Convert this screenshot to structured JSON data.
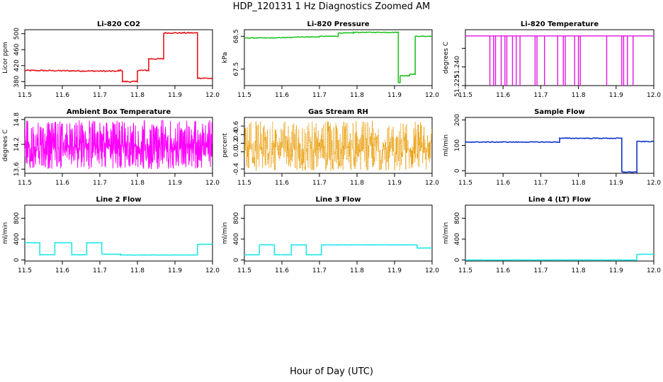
{
  "page": {
    "title": "HDP_120131  1 Hz Diagnostics Zoomed AM",
    "xlabel": "Hour of Day (UTC)"
  },
  "chart_data": [
    {
      "id": "co2",
      "type": "line",
      "title": "Li-820 CO2",
      "ylabel": "Licor ppm",
      "color": "#e8161b",
      "xlim": [
        11.5,
        12.0
      ],
      "ylim": [
        370,
        510
      ],
      "xticks": [
        11.5,
        11.6,
        11.7,
        11.8,
        11.9,
        12.0
      ],
      "yticks": [
        380,
        420,
        460,
        500
      ],
      "series": [
        {
          "x": [
            11.5,
            11.75,
            11.75,
            11.76,
            11.76,
            11.8,
            11.8,
            11.83,
            11.83,
            11.87,
            11.87,
            11.96,
            11.96,
            12.0
          ],
          "y": [
            408,
            406,
            408,
            408,
            380,
            380,
            408,
            408,
            437,
            437,
            502,
            502,
            389,
            388
          ],
          "noise": 1.5
        }
      ]
    },
    {
      "id": "pressure",
      "type": "line",
      "title": "Li-820 Pressure",
      "ylabel": "kPa",
      "color": "#22c322",
      "xlim": [
        11.5,
        12.0
      ],
      "ylim": [
        67.0,
        68.7
      ],
      "xticks": [
        11.5,
        11.6,
        11.7,
        11.8,
        11.9,
        12.0
      ],
      "yticks": [
        67.5,
        68.5
      ],
      "series": [
        {
          "x": [
            11.5,
            11.59,
            11.59,
            11.63,
            11.63,
            11.7,
            11.7,
            11.75,
            11.75,
            11.79,
            11.79,
            11.91,
            11.91,
            11.915,
            11.915,
            11.94,
            11.94,
            11.955,
            11.955,
            12.0
          ],
          "y": [
            68.45,
            68.45,
            68.46,
            68.46,
            68.48,
            68.48,
            68.5,
            68.5,
            68.6,
            68.6,
            68.62,
            68.62,
            67.1,
            67.1,
            67.3,
            67.3,
            67.35,
            67.35,
            68.5,
            68.5
          ],
          "noise": 0.01
        }
      ]
    },
    {
      "id": "licor-temp",
      "type": "line",
      "title": "Li-820 Temperature",
      "ylabel": "degrees C",
      "color": "#e016e0",
      "xlim": [
        11.5,
        12.0
      ],
      "ylim": [
        51.225,
        51.27
      ],
      "xticks": [
        11.5,
        11.6,
        11.7,
        11.8,
        11.9,
        12.0
      ],
      "yticks": [
        51.225,
        51.24,
        51.255
      ],
      "ytick_labels": [
        "51.225",
        "51.240",
        ""
      ],
      "series": [
        {
          "baseline": 51.265,
          "low": 51.225,
          "dips": [
            11.565,
            11.575,
            11.58,
            11.595,
            11.605,
            11.61,
            11.625,
            11.635,
            11.645,
            11.685,
            11.69,
            11.71,
            11.745,
            11.76,
            11.765,
            11.79,
            11.8,
            11.805,
            11.875,
            11.915,
            11.92,
            11.93,
            11.945
          ]
        }
      ]
    },
    {
      "id": "box-temp",
      "type": "line",
      "title": "Ambient Box Temperature",
      "ylabel": "degrees C",
      "color": "#ff00ff",
      "xlim": [
        11.5,
        12.0
      ],
      "ylim": [
        13.5,
        14.85
      ],
      "xticks": [
        11.5,
        11.6,
        11.7,
        11.8,
        11.9,
        12.0
      ],
      "yticks": [
        13.6,
        14.2,
        14.8
      ],
      "ytick_labels": [
        "13.6",
        "14.2",
        "14.8"
      ],
      "series": [
        {
          "noise_band": {
            "center": 14.15,
            "low": 13.6,
            "high": 14.8
          }
        }
      ]
    },
    {
      "id": "rh",
      "type": "scatter",
      "title": "Gas Stream RH",
      "ylabel": "percent",
      "color": "#e89a00",
      "xlim": [
        11.5,
        12.0
      ],
      "ylim": [
        -0.5,
        0.8
      ],
      "xticks": [
        11.5,
        11.6,
        11.7,
        11.8,
        11.9,
        12.0
      ],
      "yticks": [
        -0.4,
        0.0,
        0.2,
        0.4,
        0.6
      ],
      "ytick_labels": [
        "-0.4",
        "0.0",
        "0.2",
        "0.4",
        "0.6"
      ],
      "series": [
        {
          "noise_band": {
            "center": 0.05,
            "low": -0.45,
            "high": 0.72
          }
        }
      ]
    },
    {
      "id": "sample-flow",
      "type": "line",
      "title": "Sample Flow",
      "ylabel": "ml/min",
      "color": "#1034c8",
      "xlim": [
        11.5,
        12.0
      ],
      "ylim": [
        -10,
        210
      ],
      "xticks": [
        11.5,
        11.6,
        11.7,
        11.8,
        11.9,
        12.0
      ],
      "yticks": [
        0,
        100,
        200
      ],
      "series": [
        {
          "x": [
            11.5,
            11.75,
            11.75,
            11.915,
            11.915,
            11.955,
            11.955,
            12.0
          ],
          "y": [
            113,
            113,
            128,
            128,
            -5,
            -5,
            115,
            115
          ],
          "noise": 1.5
        }
      ]
    },
    {
      "id": "line2",
      "type": "line",
      "title": "Line 2 Flow",
      "ylabel": "ml/min",
      "color": "#22e8e8",
      "xlim": [
        11.5,
        12.0
      ],
      "ylim": [
        -20,
        1050
      ],
      "xticks": [
        11.5,
        11.6,
        11.7,
        11.8,
        11.9,
        12.0
      ],
      "yticks": [
        0,
        400,
        800
      ],
      "series": [
        {
          "x": [
            11.5,
            11.54,
            11.54,
            11.58,
            11.58,
            11.625,
            11.625,
            11.665,
            11.665,
            11.705,
            11.705,
            11.755,
            11.755,
            11.96,
            11.96,
            12.0
          ],
          "y": [
            330,
            330,
            100,
            100,
            330,
            330,
            100,
            100,
            330,
            330,
            110,
            110,
            95,
            95,
            300,
            300
          ],
          "noise": 3
        }
      ]
    },
    {
      "id": "line3",
      "type": "line",
      "title": "Line 3 Flow",
      "ylabel": "ml/min",
      "color": "#22e8e8",
      "xlim": [
        11.5,
        12.0
      ],
      "ylim": [
        -20,
        1050
      ],
      "xticks": [
        11.5,
        11.6,
        11.7,
        11.8,
        11.9,
        12.0
      ],
      "yticks": [
        0,
        400,
        800
      ],
      "series": [
        {
          "x": [
            11.5,
            11.54,
            11.54,
            11.58,
            11.58,
            11.625,
            11.625,
            11.665,
            11.665,
            11.705,
            11.705,
            11.96,
            11.96,
            12.0
          ],
          "y": [
            100,
            100,
            290,
            290,
            100,
            100,
            290,
            290,
            100,
            100,
            290,
            290,
            230,
            230
          ],
          "noise": 3
        }
      ]
    },
    {
      "id": "line4",
      "type": "line",
      "title": "Line 4 (LT) Flow",
      "ylabel": "ml/min",
      "color": "#22e8e8",
      "xlim": [
        11.5,
        12.0
      ],
      "ylim": [
        -20,
        1050
      ],
      "xticks": [
        11.5,
        11.6,
        11.7,
        11.8,
        11.9,
        12.0
      ],
      "yticks": [
        0,
        400,
        800
      ],
      "series": [
        {
          "x": [
            11.5,
            11.955,
            11.955,
            12.0
          ],
          "y": [
            0,
            0,
            110,
            110
          ],
          "noise": 2
        }
      ]
    }
  ]
}
